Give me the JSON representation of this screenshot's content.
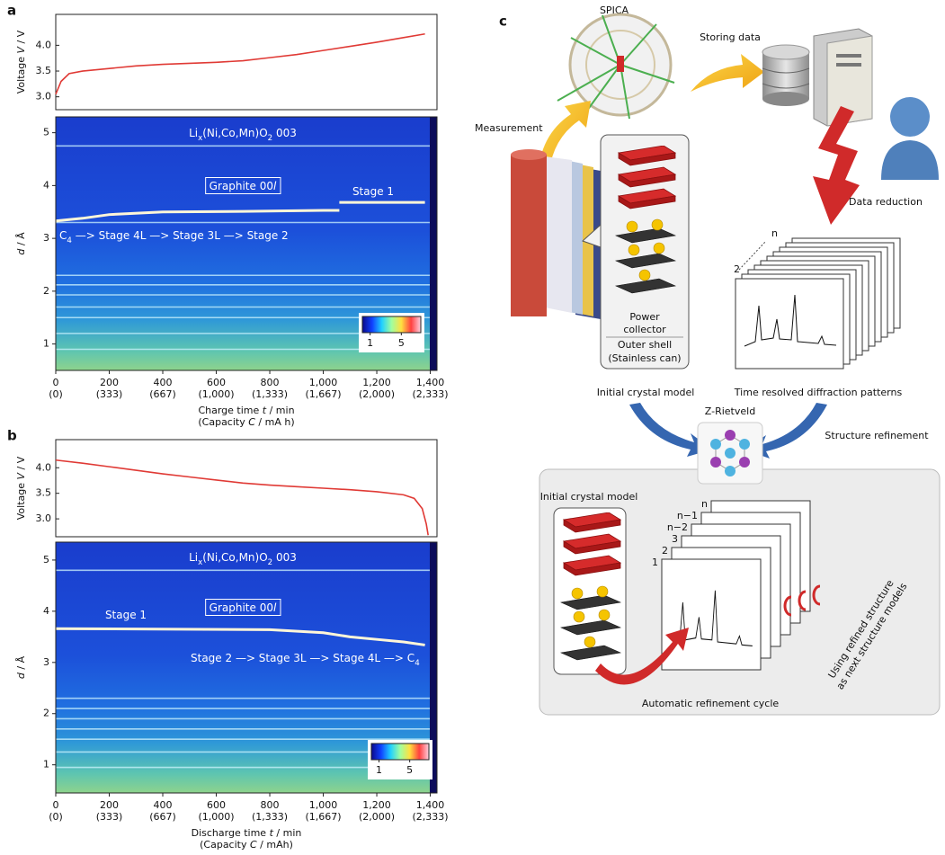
{
  "chart_data": [
    {
      "type": "line",
      "panel_label": "a",
      "y_label": [
        {
          "text": "Voltage "
        },
        {
          "text": "V",
          "style": "italic"
        },
        {
          "text": " / V"
        }
      ],
      "x": [
        0,
        20,
        50,
        100,
        200,
        300,
        400,
        500,
        600,
        700,
        800,
        900,
        1000,
        1100,
        1200,
        1300,
        1380
      ],
      "series": [
        {
          "color": "#e03a35",
          "values": [
            3.05,
            3.3,
            3.45,
            3.5,
            3.55,
            3.6,
            3.63,
            3.65,
            3.67,
            3.7,
            3.76,
            3.82,
            3.9,
            3.98,
            4.06,
            4.15,
            4.22
          ]
        }
      ],
      "xlim": [
        0,
        1425
      ],
      "ylim": [
        2.75,
        4.6
      ],
      "yticks": [
        {
          "value": 3,
          "label": "3.0"
        },
        3.5,
        {
          "value": 4,
          "label": "4.0"
        }
      ]
    },
    {
      "type": "heatmap",
      "y_label": [
        {
          "text": "d",
          "style": "italic"
        },
        {
          "text": " / Å"
        }
      ],
      "xlim": [
        0,
        1425
      ],
      "ylim": [
        0.5,
        5.3
      ],
      "yticks": [
        1,
        2,
        3,
        4,
        5
      ],
      "xticks": [
        0,
        200,
        400,
        600,
        800,
        {
          "value": 1000,
          "label": "1,000"
        },
        {
          "value": 1200,
          "label": "1,200"
        },
        {
          "value": 1400,
          "label": "1,400"
        }
      ],
      "xtick_sublabels": [
        "(0)",
        "(333)",
        "(667)",
        "(1,000)",
        "(1,333)",
        "(1,667)",
        "(2,000)",
        "(2,333)"
      ],
      "x_label": [
        {
          "text": "Charge time "
        },
        {
          "text": "t",
          "style": "italic"
        },
        {
          "text": " / min"
        }
      ],
      "x_label2": [
        {
          "text": "(Capacity "
        },
        {
          "text": "C",
          "style": "italic"
        },
        {
          "text": " / mA h)"
        }
      ],
      "bands": [
        4.75,
        3.3,
        2.3,
        2.12,
        1.93,
        1.7,
        1.5,
        1.2,
        0.9
      ],
      "band_color": "#cdf3ff",
      "graphite": {
        "color": "#fff6d8",
        "x": [
          0,
          100,
          200,
          400,
          700,
          1000,
          1060,
          1060,
          1060,
          1380
        ],
        "values": [
          3.33,
          3.38,
          3.45,
          3.5,
          3.51,
          3.53,
          3.53,
          null,
          3.68,
          3.68
        ]
      },
      "annotations": [
        {
          "parts": [
            {
              "text": "Li"
            },
            {
              "text": "x",
              "style": "sub"
            },
            {
              "text": "(Ni,Co,Mn)O"
            },
            {
              "text": "2",
              "style": "sub"
            },
            {
              "text": " 003"
            }
          ]
        },
        {
          "parts": [
            {
              "text": "Graphite 00"
            },
            {
              "text": "l",
              "style": "italic"
            }
          ],
          "boxed": true
        },
        {
          "parts": [
            {
              "text": "Stage 1"
            }
          ]
        },
        {
          "parts": [
            {
              "text": "C"
            },
            {
              "text": "4",
              "style": "sub"
            },
            {
              "text": " —> Stage 4L —> Stage 3L —> Stage 2"
            }
          ]
        }
      ],
      "colorbar": {
        "colors": [
          "#0a0a8a",
          "#1040ff",
          "#20d0ff",
          "#a0ffa0",
          "#ffe040",
          "#ff4040",
          "#ffd0e0"
        ],
        "clim": [
          0,
          7.5
        ],
        "ticks": [
          1,
          5
        ]
      }
    },
    {
      "type": "line",
      "panel_label": "b",
      "y_label": [
        {
          "text": "Voltage "
        },
        {
          "text": "V",
          "style": "italic"
        },
        {
          "text": " / V"
        }
      ],
      "x": [
        0,
        100,
        200,
        300,
        400,
        500,
        600,
        700,
        800,
        900,
        1000,
        1100,
        1200,
        1300,
        1340,
        1370,
        1385,
        1392
      ],
      "series": [
        {
          "color": "#e03a35",
          "values": [
            4.15,
            4.09,
            4.02,
            3.95,
            3.88,
            3.82,
            3.76,
            3.7,
            3.66,
            3.63,
            3.6,
            3.57,
            3.53,
            3.47,
            3.4,
            3.2,
            2.9,
            2.68
          ]
        }
      ],
      "xlim": [
        0,
        1425
      ],
      "ylim": [
        2.65,
        4.55
      ],
      "yticks": [
        {
          "value": 3,
          "label": "3.0"
        },
        3.5,
        {
          "value": 4,
          "label": "4.0"
        }
      ]
    },
    {
      "type": "heatmap",
      "y_label": [
        {
          "text": "d",
          "style": "italic"
        },
        {
          "text": " / Å"
        }
      ],
      "xlim": [
        0,
        1425
      ],
      "ylim": [
        0.45,
        5.35
      ],
      "yticks": [
        1,
        2,
        3,
        4,
        5
      ],
      "xticks": [
        0,
        200,
        400,
        600,
        800,
        {
          "value": 1000,
          "label": "1,000"
        },
        {
          "value": 1200,
          "label": "1,200"
        },
        {
          "value": 1400,
          "label": "1,400"
        }
      ],
      "xtick_sublabels": [
        "(0)",
        "(333)",
        "(667)",
        "(1,000)",
        "(1,333)",
        "(1,667)",
        "(2,000)",
        "(2,333)"
      ],
      "x_label": [
        {
          "text": "Discharge time "
        },
        {
          "text": "t",
          "style": "italic"
        },
        {
          "text": " / min"
        }
      ],
      "x_label2": [
        {
          "text": "(Capacity "
        },
        {
          "text": "C",
          "style": "italic"
        },
        {
          "text": " / mAh)"
        }
      ],
      "bands": [
        4.8,
        2.3,
        2.1,
        1.9,
        1.7,
        1.5,
        1.25,
        0.95
      ],
      "band_color": "#cdf3ff",
      "graphite": {
        "color": "#fff6d8",
        "x": [
          0,
          800,
          1000,
          1100,
          1200,
          1300,
          1380
        ],
        "values": [
          3.66,
          3.64,
          3.58,
          3.5,
          3.45,
          3.4,
          3.34
        ]
      },
      "annotations": [
        {
          "parts": [
            {
              "text": "Li"
            },
            {
              "text": "x",
              "style": "sub"
            },
            {
              "text": "(Ni,Co,Mn)O"
            },
            {
              "text": "2",
              "style": "sub"
            },
            {
              "text": " 003"
            }
          ]
        },
        {
          "parts": [
            {
              "text": "Graphite 00"
            },
            {
              "text": "l",
              "style": "italic"
            }
          ],
          "boxed": true
        },
        {
          "parts": [
            {
              "text": "Stage 1"
            }
          ]
        },
        {
          "parts": [
            {
              "text": "Stage 2 —> Stage 3L —> Stage 4L —> C"
            },
            {
              "text": "4",
              "style": "sub"
            }
          ]
        }
      ],
      "colorbar": {
        "colors": [
          "#0a0a8a",
          "#1040ff",
          "#20d0ff",
          "#a0ffa0",
          "#ffe040",
          "#ff4040",
          "#ffd0e0"
        ],
        "clim": [
          0,
          7.5
        ],
        "ticks": [
          1,
          5
        ]
      }
    }
  ],
  "diagram": {
    "label": "c",
    "spica": "SPICA",
    "storing": "Storing data",
    "measurement": "Measurement",
    "data_reduction": "Data reduction",
    "power_collector": [
      "Power",
      "collector"
    ],
    "outer_shell": [
      "Outer shell",
      "(Stainless can)"
    ],
    "initial_model": "Initial crystal model",
    "patterns": "Time resolved diffraction patterns",
    "stack_labels": [
      "n",
      "2"
    ],
    "z_rietveld": "Z-Rietveld",
    "structure_refinement": "Structure refinement",
    "cycle": {
      "initial_model": "Initial crystal model",
      "stack_labels": [
        "n",
        "n−1",
        "n−2",
        "3",
        "2",
        "1"
      ],
      "note": [
        "Using refined structure",
        "as next structure models"
      ],
      "title": "Automatic refinement cycle"
    }
  }
}
